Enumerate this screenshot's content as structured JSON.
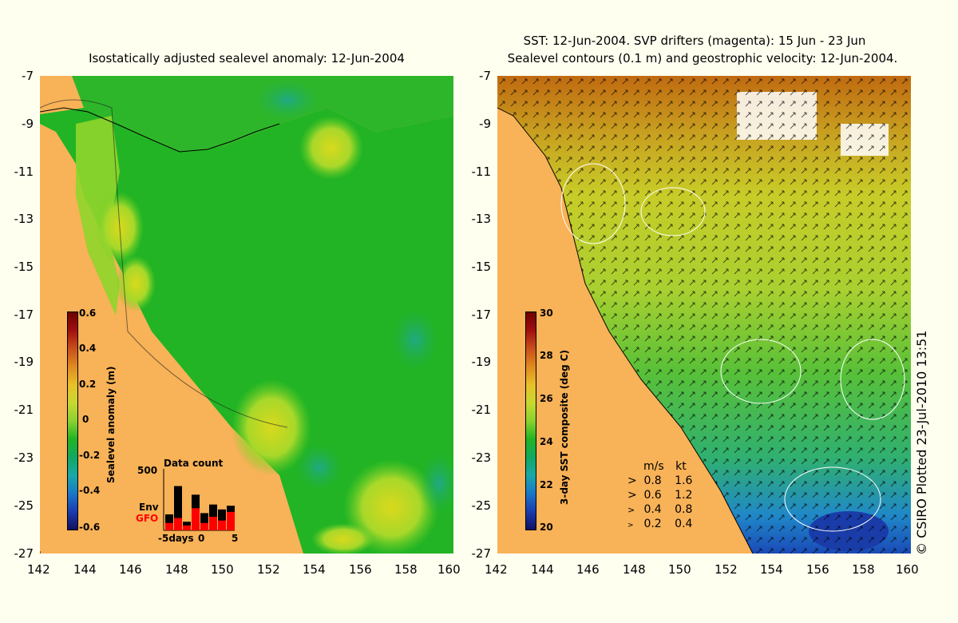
{
  "left_panel": {
    "title": "Isostatically adjusted sealevel anomaly: 12-Jun-2004",
    "lat_ticks": [
      "-7",
      "-9",
      "-11",
      "-13",
      "-15",
      "-17",
      "-19",
      "-21",
      "-23",
      "-25",
      "-27"
    ],
    "lon_ticks": [
      "142",
      "144",
      "146",
      "148",
      "150",
      "152",
      "154",
      "156",
      "158",
      "160"
    ],
    "colorbar": {
      "label": "Sealevel anomaly (m)",
      "ticks": [
        "0.6",
        "0.4",
        "0.2",
        "0",
        "-0.2",
        "-0.4",
        "-0.6"
      ],
      "range": [
        -0.6,
        0.6
      ]
    },
    "data_count": {
      "title": "Data count",
      "max_label": "500",
      "env_label": "Env",
      "gfo_label": "GFO",
      "x_ticks": [
        "-5days",
        "0",
        "5"
      ],
      "env_counts": [
        130,
        360,
        70,
        290,
        140,
        210,
        170,
        200
      ],
      "gfo_counts": [
        60,
        100,
        40,
        180,
        60,
        110,
        80,
        150
      ],
      "colors": {
        "env": "#000000",
        "gfo": "#ff0000"
      }
    }
  },
  "right_panel": {
    "title_line1": "SST: 12-Jun-2004. SVP drifters (magenta): 15 Jun - 23 Jun",
    "title_line2": "Sealevel contours (0.1 m) and geostrophic velocity: 12-Jun-2004.",
    "lat_ticks": [
      "-7",
      "-9",
      "-11",
      "-13",
      "-15",
      "-17",
      "-19",
      "-21",
      "-23",
      "-25",
      "-27"
    ],
    "lon_ticks": [
      "142",
      "144",
      "146",
      "148",
      "150",
      "152",
      "154",
      "156",
      "158",
      "160"
    ],
    "colorbar": {
      "label": "3-day SST composite (deg C)",
      "ticks": [
        "30",
        "28",
        "26",
        "24",
        "22",
        "20"
      ],
      "range": [
        20,
        30
      ]
    },
    "velocity_legend": {
      "headers": {
        "ms": "m/s",
        "kt": "kt"
      },
      "rows": [
        {
          "ms": "0.8",
          "kt": "1.6"
        },
        {
          "ms": "0.6",
          "kt": "1.2"
        },
        {
          "ms": "0.4",
          "kt": "0.8"
        },
        {
          "ms": "0.2",
          "kt": "0.4"
        }
      ]
    }
  },
  "credit": "© CSIRO Plotted 23-Jul-2010 13:51",
  "colors": {
    "land": "#f8b257",
    "background": "#fffff0",
    "sea_green": "#22bb22"
  }
}
